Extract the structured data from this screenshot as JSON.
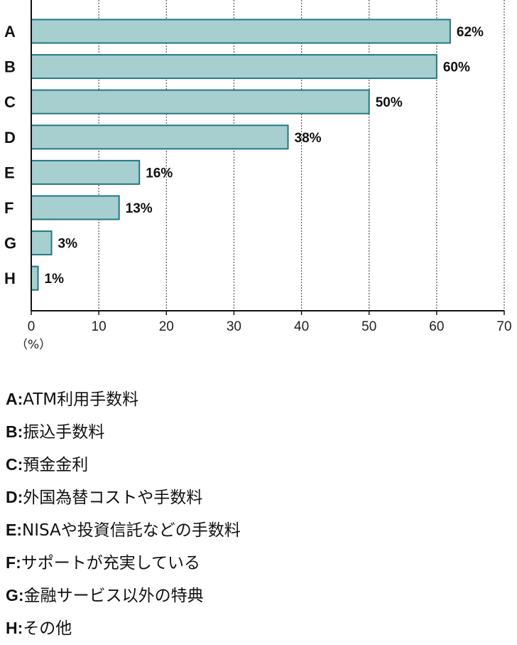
{
  "chart_data": {
    "type": "bar",
    "orientation": "horizontal",
    "categories": [
      "A",
      "B",
      "C",
      "D",
      "E",
      "F",
      "G",
      "H"
    ],
    "values": [
      62,
      60,
      50,
      38,
      16,
      13,
      3,
      1
    ],
    "value_labels": [
      "62%",
      "60%",
      "50%",
      "38%",
      "16%",
      "13%",
      "3%",
      "1%"
    ],
    "xlim": [
      0,
      70
    ],
    "x_ticks": [
      0,
      10,
      20,
      30,
      40,
      50,
      60,
      70
    ],
    "x_unit": "（%）",
    "grid": "vertical dotted",
    "colors": {
      "bar_fill": "#a7cfcf",
      "bar_stroke": "#237880",
      "axis": "#111111",
      "grid": "#555555"
    }
  },
  "legend": [
    {
      "key": "A",
      "desc": "ATM利用手数料"
    },
    {
      "key": "B",
      "desc": "振込手数料"
    },
    {
      "key": "C",
      "desc": "預金金利"
    },
    {
      "key": "D",
      "desc": "外国為替コストや手数料"
    },
    {
      "key": "E",
      "desc": "NISAや投資信託などの手数料"
    },
    {
      "key": "F",
      "desc": "サポートが充実している"
    },
    {
      "key": "G",
      "desc": "金融サービス以外の特典"
    },
    {
      "key": "H",
      "desc": "その他"
    }
  ],
  "legend_separator": ":"
}
